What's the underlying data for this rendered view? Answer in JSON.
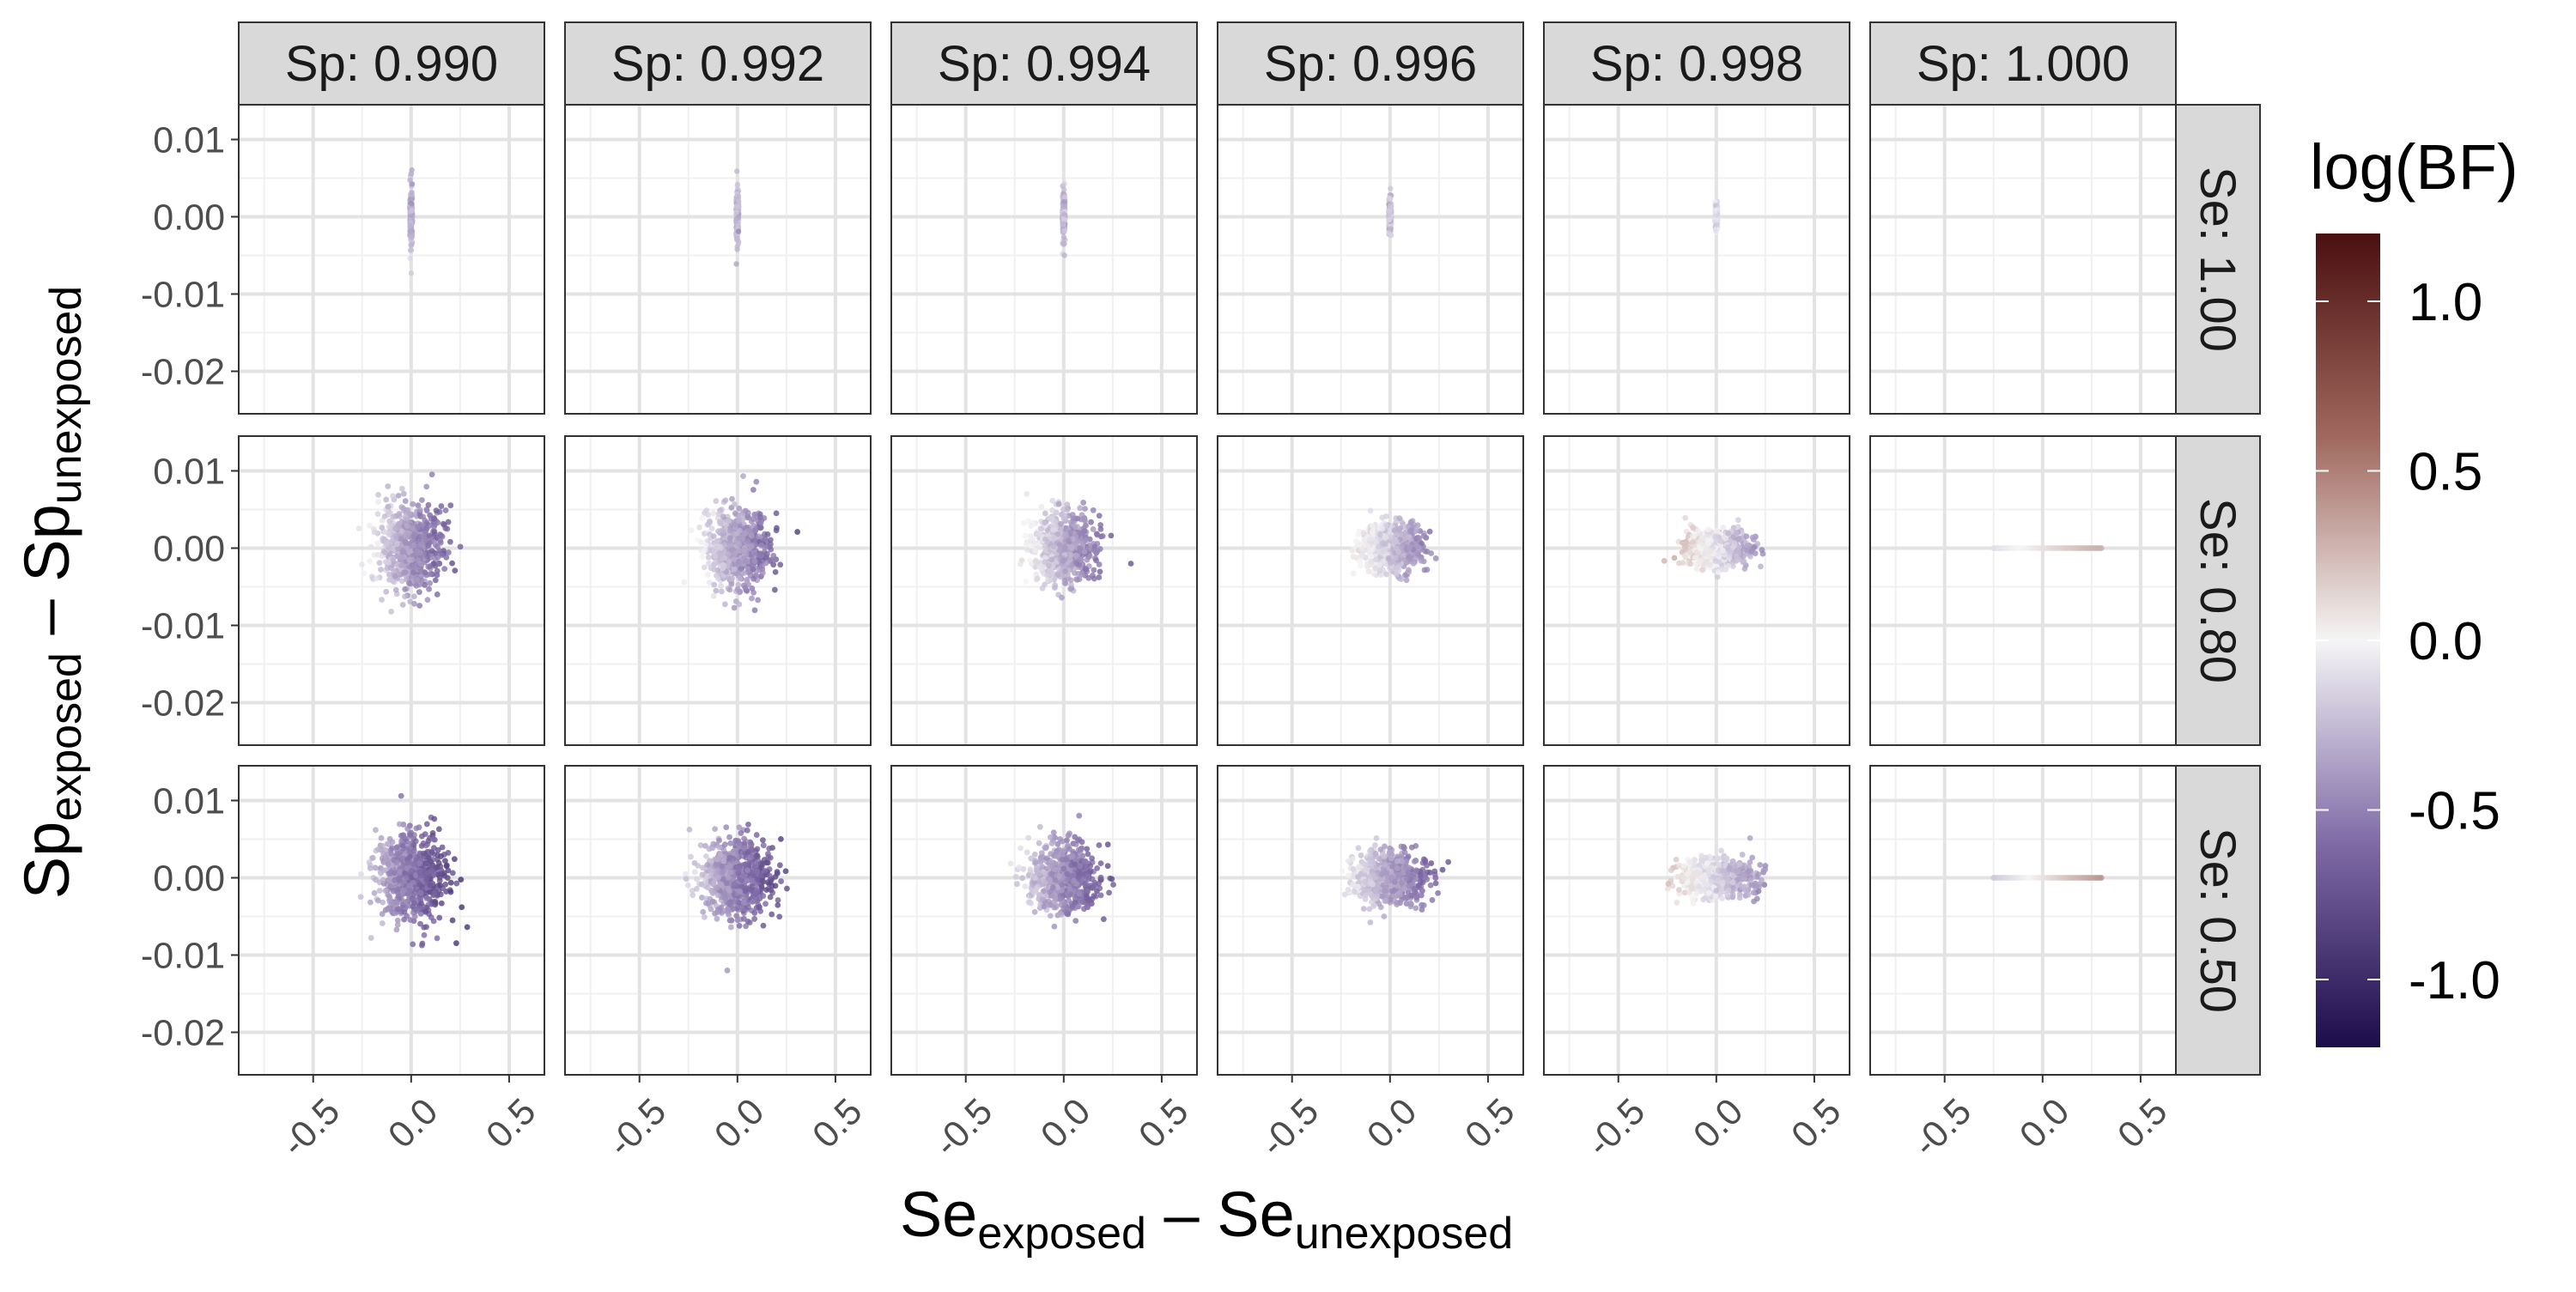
{
  "chart_data": {
    "type": "scatter",
    "facet_columns": [
      {
        "label": "Sp: 0.990",
        "sp": 0.99
      },
      {
        "label": "Sp: 0.992",
        "sp": 0.992
      },
      {
        "label": "Sp: 0.994",
        "sp": 0.994
      },
      {
        "label": "Sp: 0.996",
        "sp": 0.996
      },
      {
        "label": "Sp: 0.998",
        "sp": 0.998
      },
      {
        "label": "Sp: 1.000",
        "sp": 1.0
      }
    ],
    "facet_rows": [
      {
        "label": "Se: 1.00",
        "se": 1.0
      },
      {
        "label": "Se: 0.80",
        "se": 0.8
      },
      {
        "label": "Se: 0.50",
        "se": 0.5
      }
    ],
    "xlabel": {
      "base": "Se",
      "sub1": "exposed",
      "sep": " – ",
      "base2": "Se",
      "sub2": "unexposed"
    },
    "ylabel": {
      "base": "Sp",
      "sub1": "exposed",
      "sep": " – ",
      "base2": "Sp",
      "sub2": "unexposed"
    },
    "xlim": [
      -0.88,
      0.68
    ],
    "ylim": [
      -0.0255,
      0.0145
    ],
    "x_ticks": [
      -0.5,
      0.0,
      0.5
    ],
    "x_tick_labels": [
      "-0.5",
      "0.0",
      "0.5"
    ],
    "y_ticks": [
      0.01,
      0.0,
      -0.01,
      -0.02
    ],
    "y_tick_labels": [
      "0.01",
      "0.00",
      "-0.01",
      "-0.02"
    ],
    "legend": {
      "title": "log(BF)",
      "placement": "right",
      "range": [
        -1.2,
        1.2
      ],
      "ticks": [
        1.0,
        0.5,
        0.0,
        -0.5,
        -1.0
      ],
      "tick_labels": [
        "1.0",
        "0.5",
        "0.0",
        "-0.5",
        "-1.0"
      ],
      "colors": {
        "low": "#1c0c4a",
        "mid": "#f5f5f5",
        "high": "#4a0f0f"
      }
    },
    "grid": true,
    "panels": [
      [
        {
          "x_center": 0.0,
          "x_sd": 0.0,
          "y_center": 0.0,
          "y_sd": 0.0035,
          "y_max": 0.008,
          "y_min": -0.008,
          "logbf_mean": -0.3
        },
        {
          "x_center": 0.0,
          "x_sd": 0.0,
          "y_center": 0.0,
          "y_sd": 0.003,
          "y_max": 0.007,
          "y_min": -0.007,
          "logbf_mean": -0.27
        },
        {
          "x_center": 0.0,
          "x_sd": 0.0,
          "y_center": 0.0,
          "y_sd": 0.0028,
          "y_max": 0.0065,
          "y_min": -0.005,
          "logbf_mean": -0.25
        },
        {
          "x_center": 0.0,
          "x_sd": 0.0,
          "y_center": 0.0,
          "y_sd": 0.0022,
          "y_max": 0.0055,
          "y_min": -0.004,
          "logbf_mean": -0.2
        },
        {
          "x_center": 0.0,
          "x_sd": 0.0,
          "y_center": 0.0,
          "y_sd": 0.0015,
          "y_max": 0.0035,
          "y_min": -0.002,
          "logbf_mean": -0.1
        },
        {
          "x_center": 0.0,
          "x_sd": 0.0,
          "y_center": 0.0,
          "y_sd": 0.0,
          "y_max": 0.0,
          "y_min": 0.0,
          "logbf_mean": 0.0
        }
      ],
      [
        {
          "x_center": 0.0,
          "x_sd": 0.08,
          "y_center": 0.0,
          "y_sd": 0.0028,
          "logbf_mean": -0.4
        },
        {
          "x_center": 0.0,
          "x_sd": 0.08,
          "y_center": 0.0,
          "y_sd": 0.0026,
          "logbf_mean": -0.36
        },
        {
          "x_center": 0.0,
          "x_sd": 0.08,
          "y_center": 0.0,
          "y_sd": 0.0022,
          "logbf_mean": -0.3
        },
        {
          "x_center": 0.0,
          "x_sd": 0.08,
          "y_center": 0.0,
          "y_sd": 0.0016,
          "logbf_mean": -0.2
        },
        {
          "x_center": 0.0,
          "x_sd": 0.08,
          "y_center": 0.0,
          "y_sd": 0.0011,
          "logbf_mean": -0.08
        },
        {
          "x_min": -0.25,
          "x_max": 0.3,
          "y_center": 0.0,
          "y_sd": 0.0,
          "logbf_min": -0.1,
          "logbf_max": 0.3
        }
      ],
      [
        {
          "x_center": 0.0,
          "x_sd": 0.09,
          "y_center": 0.0,
          "y_sd": 0.0028,
          "logbf_mean": -0.55
        },
        {
          "x_center": 0.0,
          "x_sd": 0.09,
          "y_center": 0.0,
          "y_sd": 0.0025,
          "logbf_mean": -0.5
        },
        {
          "x_center": 0.0,
          "x_sd": 0.09,
          "y_center": 0.0,
          "y_sd": 0.0021,
          "logbf_mean": -0.45
        },
        {
          "x_center": 0.0,
          "x_sd": 0.09,
          "y_center": 0.0,
          "y_sd": 0.0017,
          "logbf_mean": -0.35
        },
        {
          "x_center": 0.0,
          "x_sd": 0.09,
          "y_center": 0.0,
          "y_sd": 0.0012,
          "logbf_mean": -0.15
        },
        {
          "x_min": -0.25,
          "x_max": 0.3,
          "y_center": 0.0,
          "y_sd": 0.0,
          "logbf_min": -0.2,
          "logbf_max": 0.4
        }
      ]
    ]
  }
}
